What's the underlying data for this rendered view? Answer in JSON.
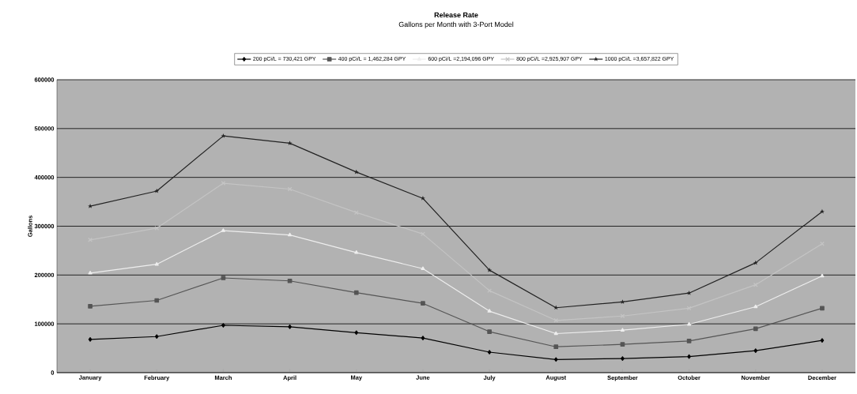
{
  "chart_data": {
    "type": "line",
    "title": "Release Rate",
    "subtitle": "Gallons per Month with 3-Port Model",
    "ylabel": "Gallons",
    "categories": [
      "January",
      "February",
      "March",
      "April",
      "May",
      "June",
      "July",
      "August",
      "September",
      "October",
      "November",
      "December"
    ],
    "series": [
      {
        "name": "200 pCi/L = 730,421 GPY",
        "color": "#000000",
        "marker": "diamond",
        "values": [
          68000,
          74000,
          97000,
          94000,
          82000,
          71000,
          42000,
          27000,
          29000,
          33000,
          45000,
          66000
        ]
      },
      {
        "name": "400 pCi/L = 1,462,284 GPY",
        "color": "#555555",
        "marker": "square",
        "values": [
          136000,
          148000,
          194000,
          188000,
          164000,
          142000,
          84000,
          53000,
          58000,
          65000,
          90000,
          132000
        ]
      },
      {
        "name": "600 pCi/L =2,194,096 GPY",
        "color": "#eeeeee",
        "marker": "triangle",
        "values": [
          204000,
          222000,
          291000,
          282000,
          246000,
          213000,
          126000,
          80000,
          87000,
          99000,
          135000,
          198000
        ]
      },
      {
        "name": "800 pCi/L =2,925,907 GPY",
        "color": "#c4c4c4",
        "marker": "cross",
        "values": [
          272000,
          296000,
          388000,
          376000,
          328000,
          284000,
          168000,
          107000,
          116000,
          132000,
          180000,
          264000
        ]
      },
      {
        "name": "1000 pCi/L =3,657,822 GPY",
        "color": "#222222",
        "marker": "star",
        "values": [
          341000,
          372000,
          485000,
          470000,
          411000,
          357000,
          210000,
          133000,
          145000,
          163000,
          225000,
          330000
        ]
      }
    ],
    "ylim": [
      0,
      600000
    ],
    "yticks": [
      0,
      100000,
      200000,
      300000,
      400000,
      500000,
      600000
    ],
    "grid": "y",
    "legend": "top",
    "line_style": "solid"
  }
}
